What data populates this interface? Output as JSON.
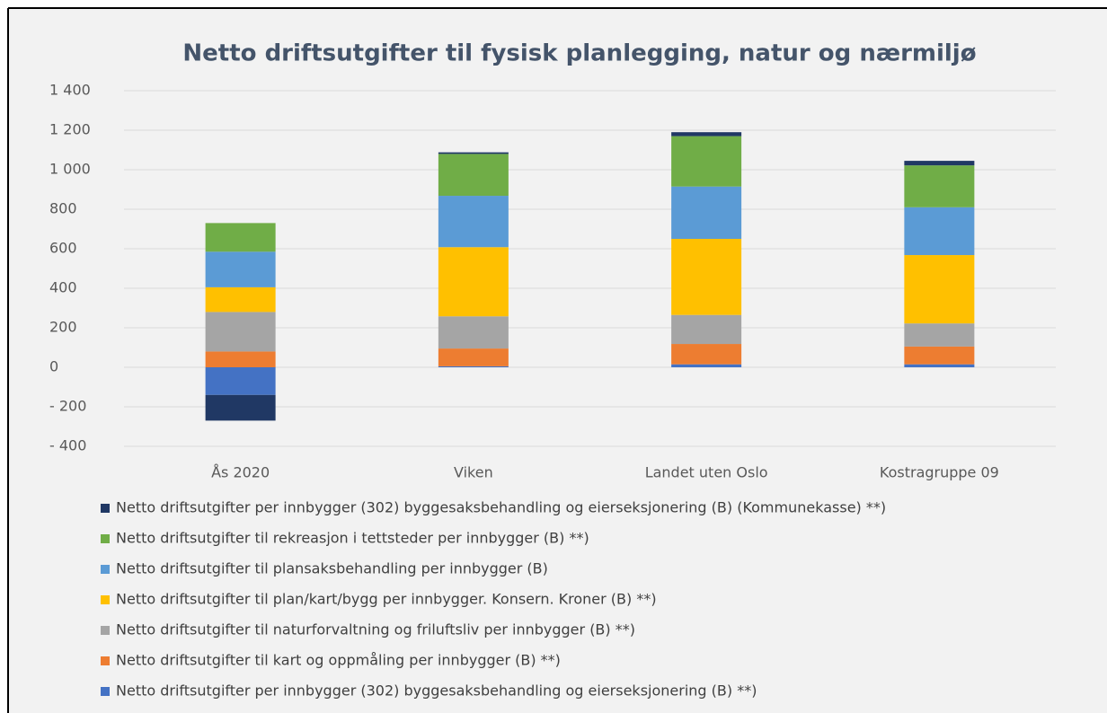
{
  "chart_data": {
    "type": "stacked_bar",
    "title": "Netto driftsutgifter til fysisk planlegging, natur og nærmiljø",
    "categories": [
      "Ås 2020",
      "Viken",
      "Landet uten Oslo",
      "Kostragruppe 09"
    ],
    "series": [
      {
        "name": "Netto driftsutgifter per innbygger (302) byggesaksbehandling og eierseksjonering (B) **)",
        "color": "#4472c4",
        "values": [
          -140,
          5,
          15,
          15
        ]
      },
      {
        "name": "Netto driftsutgifter til kart og oppmåling per innbygger (B) **)",
        "color": "#ed7d31",
        "values": [
          80,
          90,
          103,
          90
        ]
      },
      {
        "name": "Netto driftsutgifter til naturforvaltning og friluftsliv per innbygger (B) **)",
        "color": "#a5a5a5",
        "values": [
          200,
          163,
          147,
          117
        ]
      },
      {
        "name": "Netto driftsutgifter til plan/kart/bygg per innbygger. Konsern. Kroner (B) **)",
        "color": "#ffc000",
        "values": [
          125,
          350,
          385,
          346
        ]
      },
      {
        "name": "Netto driftsutgifter til plansaksbehandling per innbygger (B)",
        "color": "#5b9bd5",
        "values": [
          180,
          260,
          265,
          242
        ]
      },
      {
        "name": "Netto driftsutgifter til rekreasjon i tettsteder per innbygger (B) **)",
        "color": "#70ad47",
        "values": [
          145,
          212,
          255,
          212
        ]
      },
      {
        "name": "Netto driftsutgifter per innbygger (302) byggesaksbehandling og eierseksjonering (B) (Kommunekasse) **)",
        "color": "#203864",
        "values": [
          -130,
          8,
          20,
          23
        ]
      }
    ],
    "ylim": [
      -400,
      1400
    ],
    "yticks": [
      {
        "value": -400,
        "label": "- 400"
      },
      {
        "value": -200,
        "label": "- 200"
      },
      0,
      200,
      400,
      600,
      800,
      {
        "value": 1000,
        "label": "1 000"
      },
      {
        "value": 1200,
        "label": "1 200"
      },
      {
        "value": 1400,
        "label": "1 400"
      }
    ],
    "grid": true,
    "legend": "bottom"
  }
}
